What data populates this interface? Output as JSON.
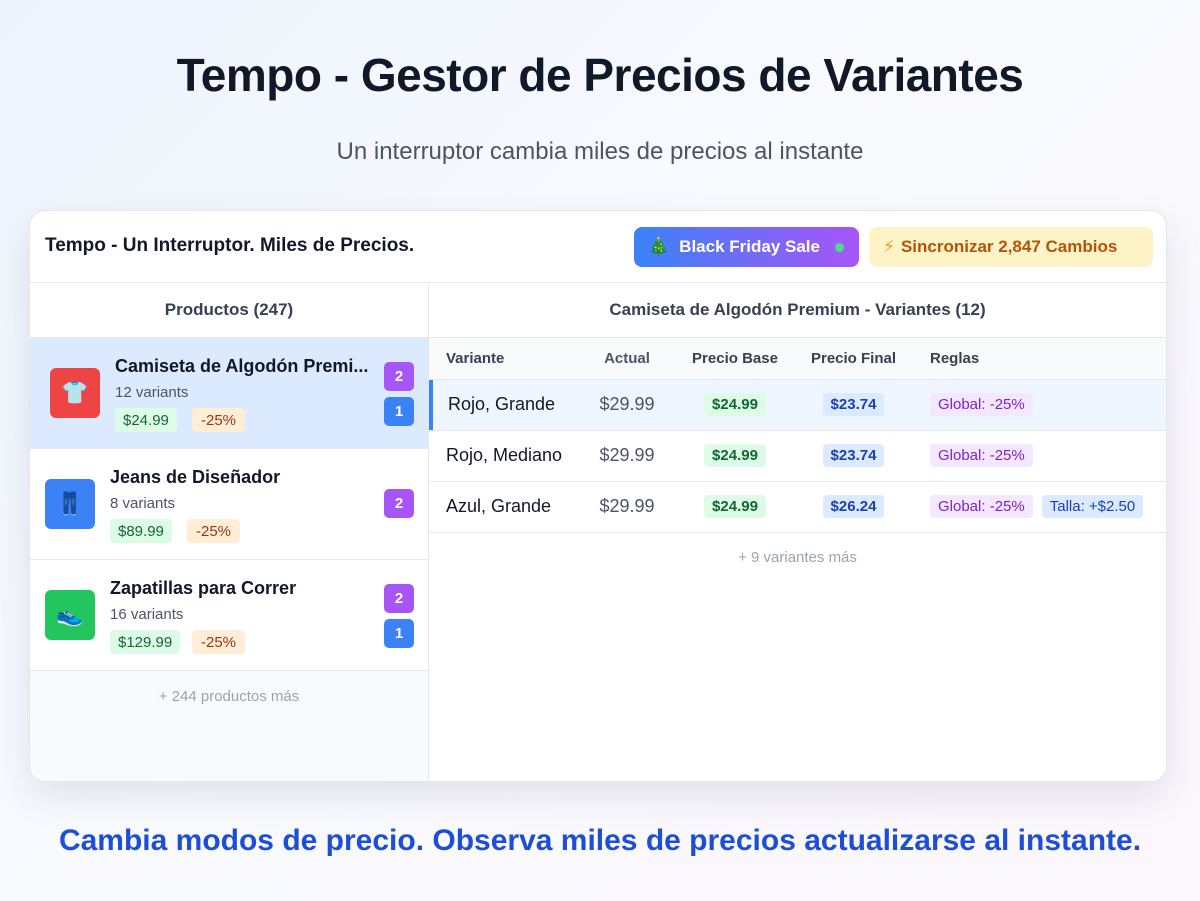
{
  "hero": {
    "title": "Tempo - Gestor de Precios de Variantes",
    "subtitle": "Un interruptor cambia miles de precios al instante"
  },
  "app": {
    "title": "Tempo - Un Interruptor. Miles de Precios.",
    "mode_button": {
      "icon": "christmas-tree-icon",
      "label": "Black Friday Sale",
      "status": "active"
    },
    "sync_button": {
      "icon": "lightning-icon",
      "label": "Sincronizar 2,847 Cambios"
    }
  },
  "products": {
    "heading": "Productos (247)",
    "items": [
      {
        "name": "Camiseta de Algodón Premi...",
        "variants": "12 variants",
        "price": "$24.99",
        "discount": "-25%",
        "badges": [
          "2",
          "1"
        ],
        "icon": "tshirt-icon",
        "selected": true
      },
      {
        "name": "Jeans de Diseñador",
        "variants": "8 variants",
        "price": "$89.99",
        "discount": "-25%",
        "badges": [
          "2"
        ],
        "icon": "jeans-icon",
        "selected": false
      },
      {
        "name": "Zapatillas para Correr",
        "variants": "16 variants",
        "price": "$129.99",
        "discount": "-25%",
        "badges": [
          "2",
          "1"
        ],
        "icon": "sneaker-icon",
        "selected": false
      }
    ],
    "more": "+ 244 productos más"
  },
  "variants": {
    "heading": "Camiseta de Algodón Premium - Variantes (12)",
    "columns": [
      "Variante",
      "Actual",
      "Precio Base",
      "Precio Final",
      "Reglas"
    ],
    "rows": [
      {
        "variant": "Rojo, Grande",
        "actual": "$29.99",
        "base": "$24.99",
        "final": "$23.74",
        "rules": [
          "Global: -25%"
        ],
        "selected": true
      },
      {
        "variant": "Rojo, Mediano",
        "actual": "$29.99",
        "base": "$24.99",
        "final": "$23.74",
        "rules": [
          "Global: -25%"
        ],
        "selected": false
      },
      {
        "variant": "Azul, Grande",
        "actual": "$29.99",
        "base": "$24.99",
        "final": "$26.24",
        "rules": [
          "Global: -25%",
          "Talla: +$2.50"
        ],
        "selected": false
      }
    ],
    "more": "+ 9 variantes más"
  },
  "footer": {
    "tagline": "Cambia modos de precio. Observa miles de precios actualizarse al instante."
  },
  "colors": {
    "accent_blue": "#3b82f6",
    "accent_purple": "#a855f7",
    "tagline_blue": "#1d4ed8",
    "price_green": "#dcfce7",
    "discount_orange": "#ffedd5"
  }
}
